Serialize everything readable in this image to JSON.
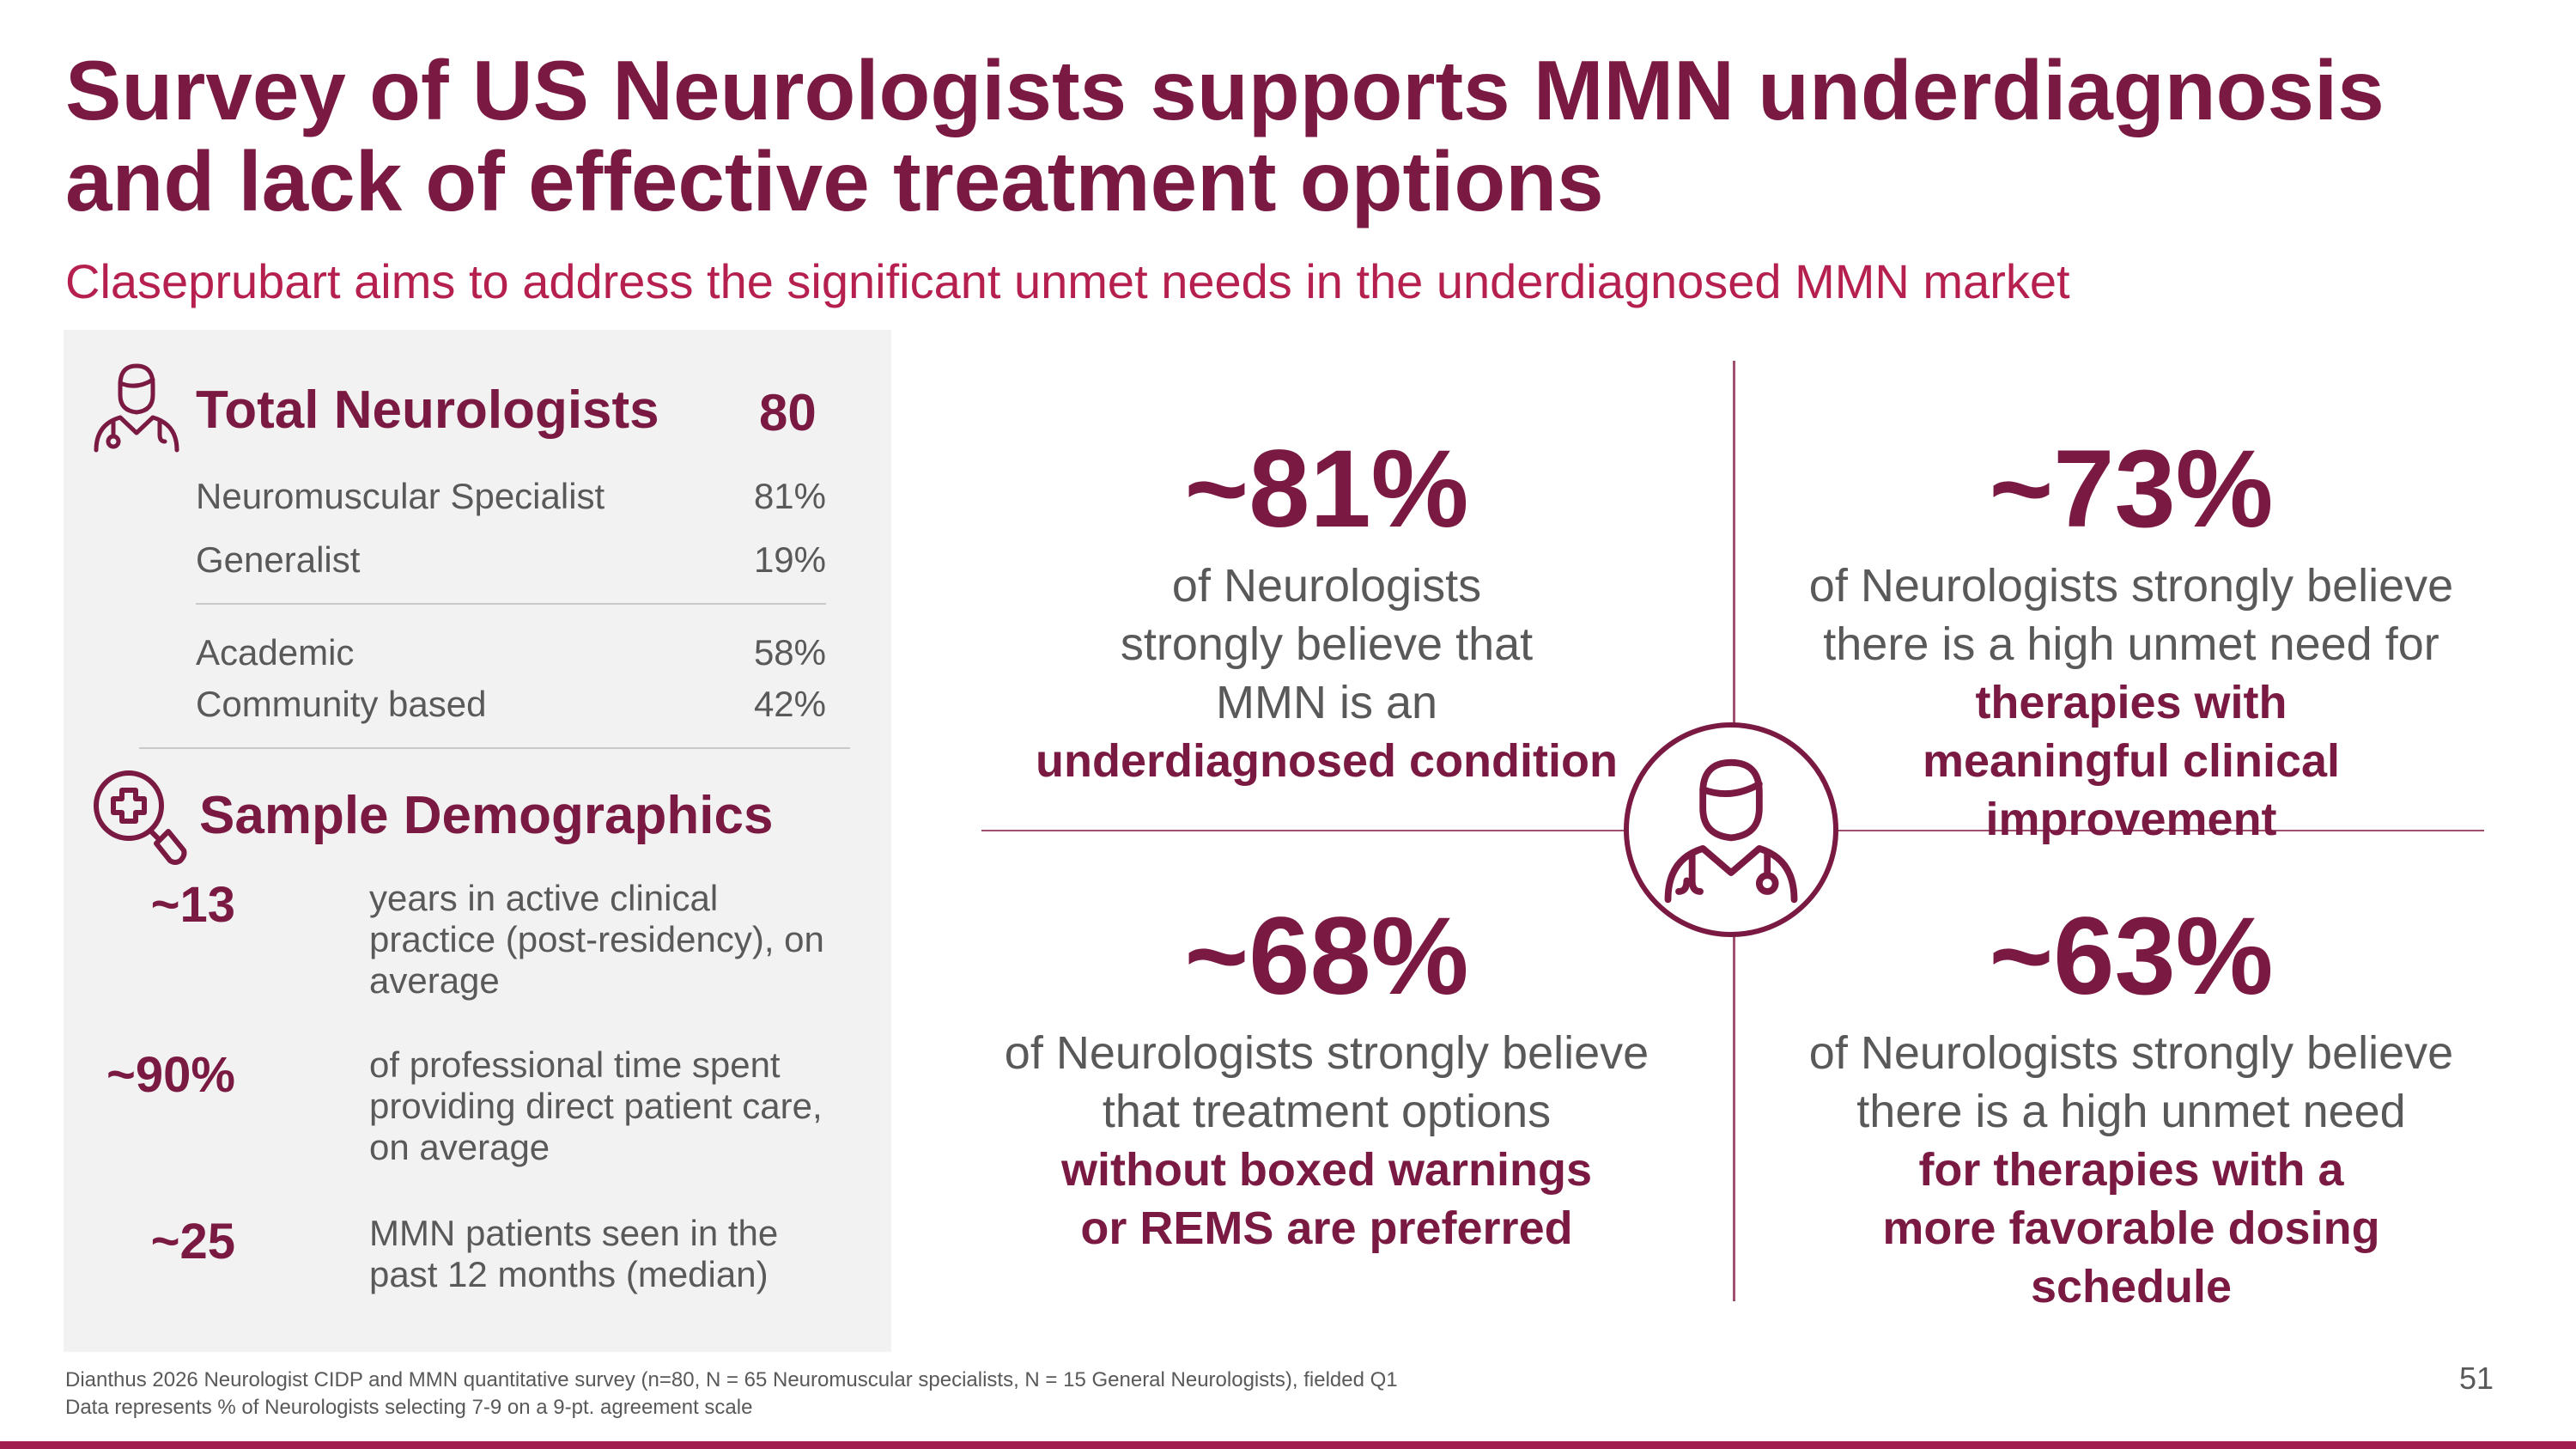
{
  "title": "Survey of US Neurologists supports MMN underdiagnosis and lack of effective treatment options",
  "subtitle": "Claseprubart aims to address the significant unmet needs in the underdiagnosed MMN market",
  "panel": {
    "total": {
      "label": "Total Neurologists",
      "value": "80",
      "icon": "doctor-icon"
    },
    "specialty_rows": [
      {
        "label": "Neuromuscular Specialist",
        "value": "81%"
      },
      {
        "label": "Generalist",
        "value": "19%"
      }
    ],
    "setting_rows": [
      {
        "label": "Academic",
        "value": "58%"
      },
      {
        "label": "Community based",
        "value": "42%"
      }
    ],
    "demographics": {
      "heading": "Sample Demographics",
      "icon": "magnifier-medical-icon",
      "items": [
        {
          "value": "~13",
          "text": "years in active clinical practice (post-residency), on average"
        },
        {
          "value": "~90%",
          "text": "of professional time spent providing direct patient care, on average"
        },
        {
          "value": "~25",
          "text": "MMN patients seen in the past 12 months (median)"
        }
      ]
    }
  },
  "quadrants": [
    {
      "stat": "~81%",
      "text": "of Neurologists strongly believe that MMN is an",
      "bold": "underdiagnosed condition"
    },
    {
      "stat": "~73%",
      "text": "of Neurologists strongly believe there is a high unmet need for",
      "bold": "therapies with meaningful clinical improvement"
    },
    {
      "stat": "~68%",
      "text": "of Neurologists strongly believe that treatment options",
      "bold": "without boxed warnings or REMS are preferred"
    },
    {
      "stat": "~63%",
      "text": "of Neurologists strongly believe there is a high unmet need",
      "bold": "for therapies with a more favorable dosing schedule"
    }
  ],
  "center_icon": "doctor-icon",
  "footnotes": [
    "Dianthus 2026 Neurologist CIDP and MMN quantitative survey (n=80, N = 65 Neuromuscular specialists, N = 15 General Neurologists), fielded Q1",
    "Data represents % of Neurologists selecting 7-9 on a 9-pt. agreement scale"
  ],
  "page_number": "51",
  "colors": {
    "brand": "#7a1a42",
    "accent": "#b5204f",
    "panel_bg": "#f2f2f2",
    "text": "#595959"
  }
}
